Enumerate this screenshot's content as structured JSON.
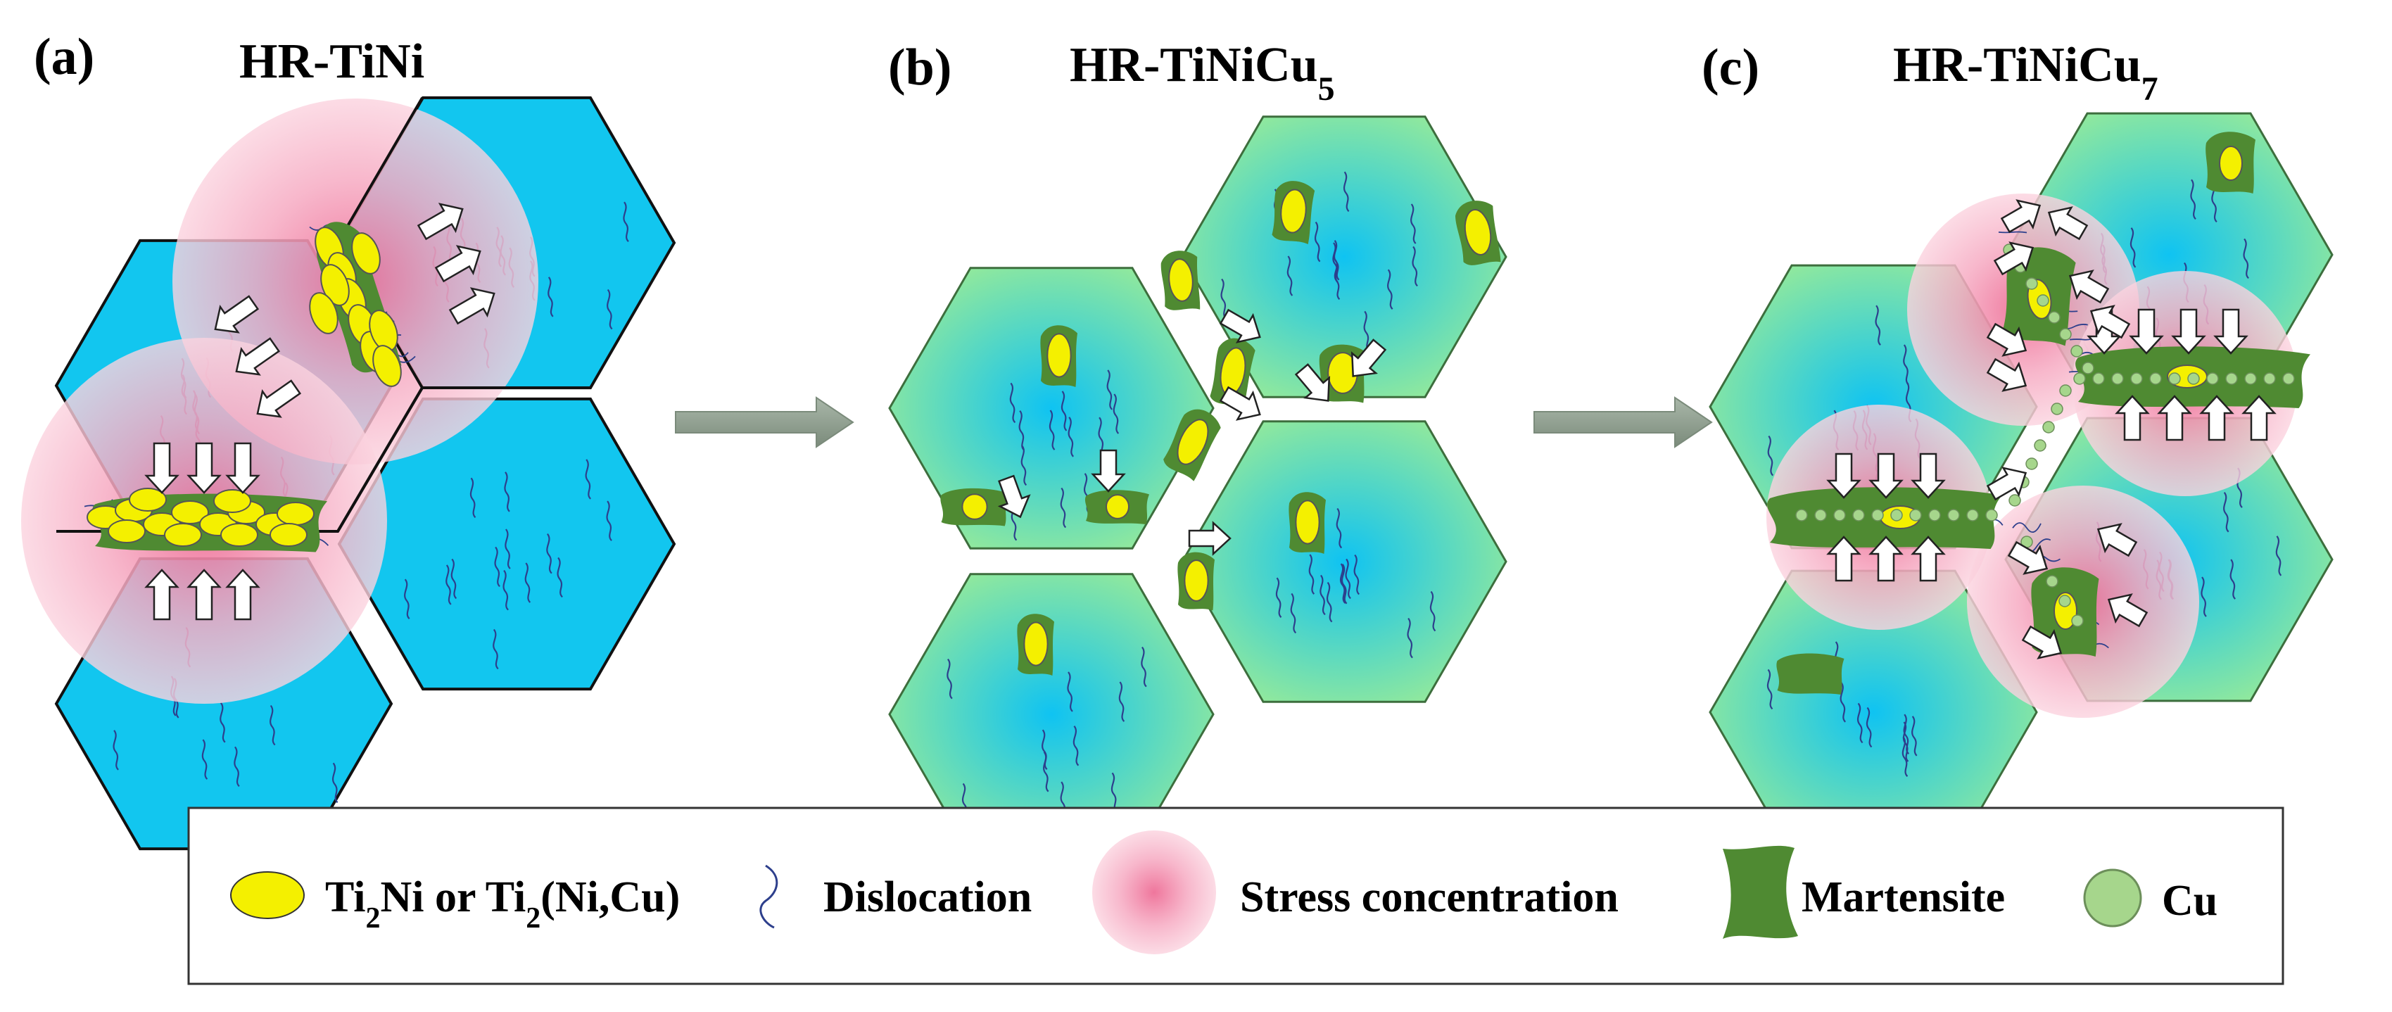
{
  "panels": [
    {
      "letter": "(a)",
      "title_base": "HR-TiNi",
      "title_sub": ""
    },
    {
      "letter": "(b)",
      "title_base": "HR-TiNiCu",
      "title_sub": "5"
    },
    {
      "letter": "(c)",
      "title_base": "HR-TiNiCu",
      "title_sub": "7"
    }
  ],
  "legend": {
    "ti2ni": {
      "a": "Ti",
      "a_sub": "2",
      "b": "Ni or Ti",
      "b_sub": "2",
      "c": "(Ni,Cu)"
    },
    "dislocation": "Dislocation",
    "stress": "Stress concentration",
    "martensite": "Martensite",
    "cu": "Cu"
  },
  "colors": {
    "grain_blue": "#12c6ef",
    "grain_green": "#8ce6a0",
    "stress_pink": "#f07ca2",
    "martensite": "#4f8a32",
    "precipitate": "#f4f000",
    "cu_particle": "#a6d68c",
    "dislocation_line": "#2d3f8c",
    "process_arrow": "#8a9a8a"
  }
}
